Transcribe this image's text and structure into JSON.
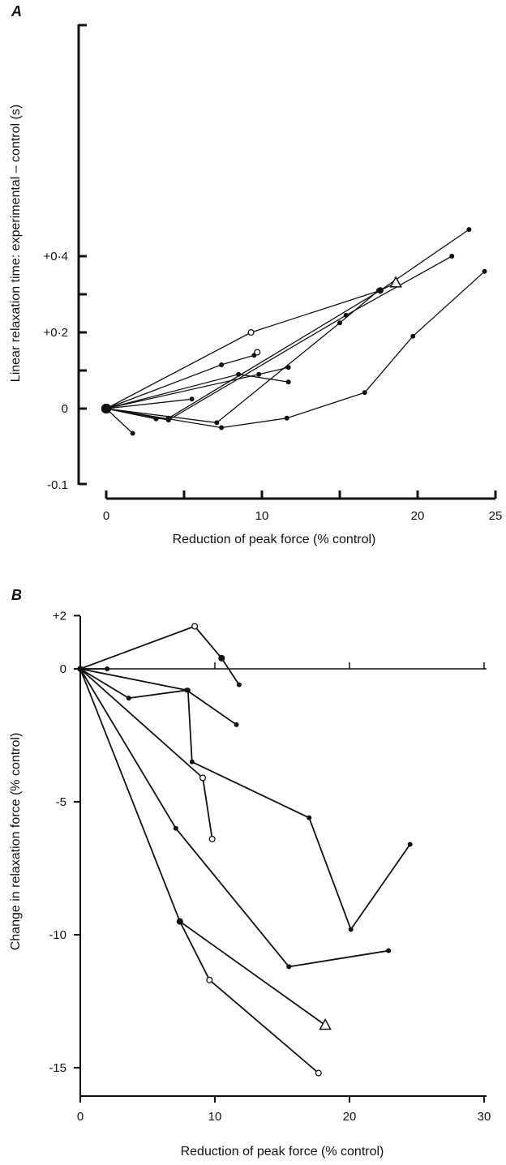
{
  "chart_data": [
    {
      "panel": "A",
      "type": "line",
      "xlabel": "Reduction of peak force (% control)",
      "ylabel": "Linear relaxation time: experimental – control (s)",
      "xlim": [
        0,
        25
      ],
      "ylim": [
        -0.1,
        0.5
      ],
      "x_ticks": [
        "0",
        "10",
        "20",
        "25"
      ],
      "y_ticks": [
        "+0·4",
        "+0·2",
        "0",
        "-0.1"
      ],
      "series": [
        {
          "marker": "open-circle",
          "points": [
            [
              0,
              0
            ],
            [
              9.3,
              0.2
            ],
            [
              17.6,
              0.31
            ],
            [
              18.6,
              0.33
            ]
          ]
        },
        {
          "marker": "triangle",
          "points": [
            [
              18.6,
              0.33
            ]
          ]
        },
        {
          "marker": "filled",
          "points": [
            [
              0,
              0
            ],
            [
              7.4,
              0.115
            ],
            [
              9.5,
              0.14
            ]
          ]
        },
        {
          "marker": "open-circle",
          "points": [
            [
              9.7,
              0.148
            ]
          ]
        },
        {
          "marker": "filled",
          "points": [
            [
              0,
              0
            ],
            [
              8.5,
              0.09
            ],
            [
              11.7,
              0.07
            ]
          ]
        },
        {
          "marker": "filled",
          "points": [
            [
              0,
              0
            ],
            [
              9.8,
              0.09
            ],
            [
              11.7,
              0.108
            ]
          ]
        },
        {
          "marker": "filled",
          "points": [
            [
              0,
              0
            ],
            [
              5.5,
              0.025
            ]
          ]
        },
        {
          "marker": "filled",
          "points": [
            [
              0,
              0
            ],
            [
              1.7,
              -0.065
            ]
          ]
        },
        {
          "marker": "filled",
          "points": [
            [
              0,
              0
            ],
            [
              3.2,
              -0.027
            ],
            [
              4,
              -0.025
            ],
            [
              17.6,
              0.31
            ],
            [
              23.3,
              0.47
            ]
          ]
        },
        {
          "marker": "filled",
          "points": [
            [
              0,
              0
            ],
            [
              4,
              -0.03
            ],
            [
              15.4,
              0.245
            ],
            [
              22.2,
              0.4
            ]
          ]
        },
        {
          "marker": "filled",
          "points": [
            [
              0,
              0
            ],
            [
              7.1,
              -0.037
            ],
            [
              15,
              0.225
            ],
            [
              17.5,
              0.31
            ]
          ]
        },
        {
          "marker": "filled",
          "points": [
            [
              0,
              0
            ],
            [
              7.4,
              -0.05
            ],
            [
              11.6,
              -0.025
            ],
            [
              16.6,
              0.042
            ],
            [
              19.7,
              0.19
            ],
            [
              24.3,
              0.36
            ]
          ]
        }
      ]
    },
    {
      "panel": "B",
      "type": "line",
      "xlabel": "Reduction of peak force (% control)",
      "ylabel": "Change in relaxation force (% control)",
      "xlim": [
        0,
        30
      ],
      "ylim": [
        -16,
        2
      ],
      "x_ticks": [
        "0",
        "10",
        "20",
        "30"
      ],
      "y_ticks": [
        "+2",
        "0",
        "-5",
        "-10",
        "-15"
      ],
      "series": [
        {
          "marker": "open-circle",
          "points": [
            [
              0,
              0
            ],
            [
              8.5,
              1.6
            ],
            [
              10.5,
              0.4
            ]
          ]
        },
        {
          "marker": "filled",
          "points": [
            [
              10.5,
              0.4
            ],
            [
              11.8,
              -0.6
            ]
          ]
        },
        {
          "marker": "filled",
          "points": [
            [
              0,
              0
            ],
            [
              2,
              0
            ]
          ]
        },
        {
          "marker": "filled",
          "points": [
            [
              0,
              0
            ],
            [
              3.6,
              -1.1
            ],
            [
              8,
              -0.8
            ],
            [
              8.3,
              -3.5
            ],
            [
              17,
              -5.6
            ],
            [
              20.1,
              -9.8
            ],
            [
              24.5,
              -6.6
            ]
          ]
        },
        {
          "marker": "filled",
          "points": [
            [
              0,
              0
            ],
            [
              7.9,
              -0.8
            ],
            [
              11.6,
              -2.1
            ]
          ]
        },
        {
          "marker": "filled",
          "points": [
            [
              0,
              0
            ],
            [
              9.1,
              -4.1
            ]
          ]
        },
        {
          "marker": "open-circle",
          "points": [
            [
              9.1,
              -4.1
            ],
            [
              9.8,
              -6.4
            ]
          ]
        },
        {
          "marker": "filled",
          "points": [
            [
              0,
              0
            ],
            [
              7.1,
              -6.0
            ],
            [
              15.5,
              -11.2
            ],
            [
              22.9,
              -10.6
            ]
          ]
        },
        {
          "marker": "open-circle",
          "points": [
            [
              0,
              0
            ],
            [
              7.4,
              -9.5
            ],
            [
              9.6,
              -11.7
            ],
            [
              17.7,
              -15.2
            ]
          ]
        },
        {
          "marker": "filled",
          "points": [
            [
              7.4,
              -9.5
            ],
            [
              18.2,
              -13.4
            ]
          ]
        },
        {
          "marker": "triangle",
          "points": [
            [
              18.2,
              -13.4
            ]
          ]
        }
      ]
    }
  ]
}
